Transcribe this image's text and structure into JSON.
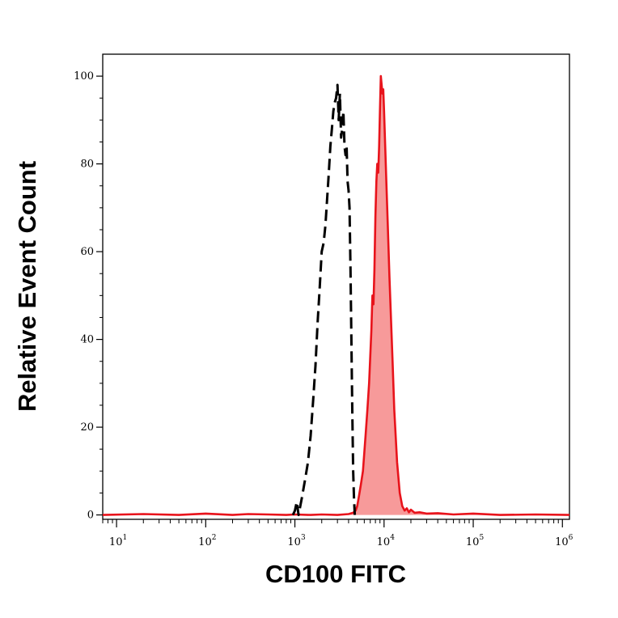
{
  "chart_data": {
    "type": "area",
    "xlabel": "CD100 FITC",
    "ylabel": "Relative Event Count",
    "xscale": "log",
    "xlim": [
      7,
      1200000
    ],
    "ylim": [
      -1,
      105
    ],
    "x_ticks": [
      {
        "base": "10",
        "exp": "1",
        "value": 10
      },
      {
        "base": "10",
        "exp": "2",
        "value": 100
      },
      {
        "base": "10",
        "exp": "3",
        "value": 1000
      },
      {
        "base": "10",
        "exp": "4",
        "value": 10000
      },
      {
        "base": "10",
        "exp": "5",
        "value": 100000
      },
      {
        "base": "10",
        "exp": "6",
        "value": 1000000
      }
    ],
    "y_ticks": [
      {
        "label": "0",
        "value": 0
      },
      {
        "label": "20",
        "value": 20
      },
      {
        "label": "40",
        "value": 40
      },
      {
        "label": "60",
        "value": 60
      },
      {
        "label": "80",
        "value": 80
      },
      {
        "label": "100",
        "value": 100
      }
    ],
    "grid": false,
    "legend": "none",
    "series": [
      {
        "style": "dashed",
        "color": "#000000",
        "fill": "none",
        "x": [
          950,
          1000,
          1050,
          1100,
          1150,
          1200,
          1250,
          1300,
          1400,
          1500,
          1600,
          1700,
          1800,
          1900,
          2000,
          2100,
          2200,
          2300,
          2400,
          2500,
          2600,
          2700,
          2800,
          2900,
          3000,
          3100,
          3200,
          3300,
          3400,
          3500,
          3600,
          3700,
          3800,
          3900,
          4000,
          4100,
          4200,
          4300,
          4400,
          4500,
          4600,
          4700
        ],
        "y": [
          0,
          1,
          3,
          0,
          2,
          4,
          6,
          8,
          12,
          18,
          26,
          34,
          44,
          52,
          60,
          62,
          66,
          72,
          78,
          84,
          88,
          92,
          94,
          95,
          98,
          90,
          96,
          86,
          88,
          92,
          84,
          82,
          84,
          76,
          74,
          70,
          56,
          40,
          24,
          10,
          4,
          0
        ]
      },
      {
        "style": "solid",
        "color": "#e8131b",
        "fill": "#f79a9a",
        "x": [
          7,
          20,
          50,
          100,
          200,
          300,
          500,
          800,
          1000,
          1500,
          2000,
          3000,
          4000,
          4500,
          4800,
          5000,
          5200,
          5500,
          5800,
          6000,
          6200,
          6500,
          6800,
          7000,
          7200,
          7400,
          7600,
          7800,
          8000,
          8200,
          8400,
          8600,
          8800,
          9000,
          9200,
          9400,
          9600,
          9800,
          10000,
          10300,
          10600,
          11000,
          11500,
          12000,
          12500,
          13000,
          14000,
          15000,
          16000,
          17000,
          18000,
          19000,
          20000,
          22000,
          25000,
          30000,
          40000,
          60000,
          100000,
          200000,
          500000,
          1200000
        ],
        "y": [
          0,
          0.2,
          0,
          0.3,
          0,
          0.2,
          0.1,
          0,
          0.1,
          0,
          0.1,
          0,
          0.2,
          0.5,
          1,
          2,
          4,
          7,
          10,
          14,
          18,
          24,
          30,
          36,
          42,
          50,
          48,
          56,
          68,
          76,
          80,
          78,
          84,
          92,
          100,
          98,
          96,
          97,
          92,
          84,
          76,
          66,
          54,
          44,
          34,
          24,
          12,
          5,
          2,
          1,
          1.5,
          0.6,
          1.2,
          0.5,
          0.6,
          0.3,
          0.4,
          0.1,
          0.3,
          0,
          0.1,
          0
        ]
      }
    ]
  }
}
